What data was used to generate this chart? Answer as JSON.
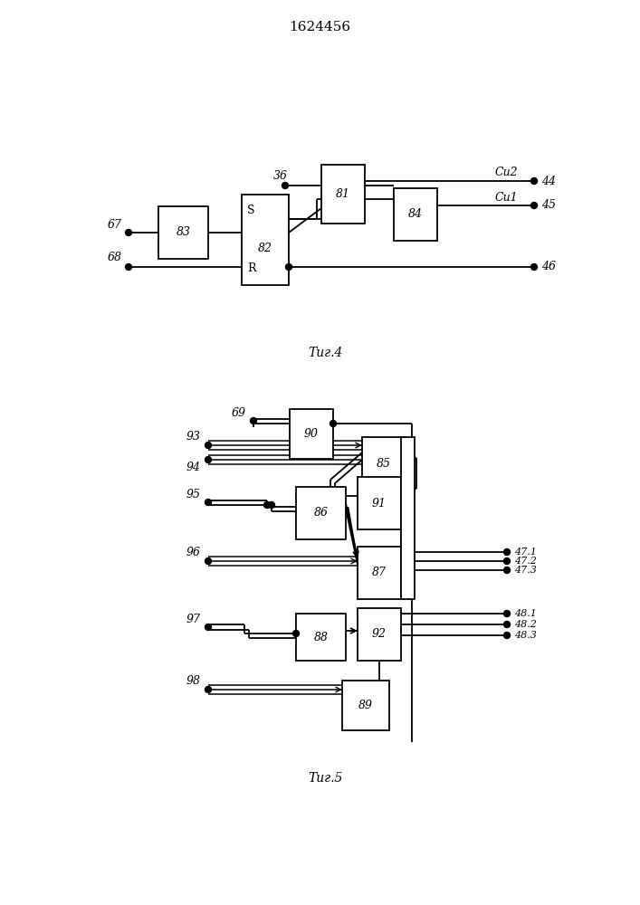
{
  "title": "1624456",
  "fig4_caption": "Τиг.4",
  "fig5_caption": "Τиг.5",
  "bg": "#ffffff",
  "lc": "#000000"
}
